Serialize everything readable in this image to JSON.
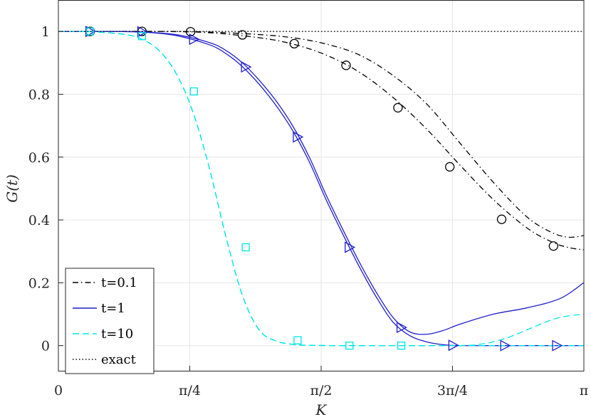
{
  "chart_data": {
    "type": "line",
    "xlabel": "K",
    "ylabel": "G(t)",
    "xlim": [
      0,
      3.14159265
    ],
    "ylim": [
      -0.08,
      1.1
    ],
    "grid": true,
    "legend_placement": "bottom-left",
    "x_ticks": [
      {
        "value": 0,
        "label": "0"
      },
      {
        "value": 0.785398,
        "label": "π/4"
      },
      {
        "value": 1.570796,
        "label": "π/2"
      },
      {
        "value": 2.356194,
        "label": "3π/4"
      },
      {
        "value": 3.141593,
        "label": "π"
      }
    ],
    "y_ticks": [
      {
        "value": 0,
        "label": "0"
      },
      {
        "value": 0.2,
        "label": "0.2"
      },
      {
        "value": 0.4,
        "label": "0.4"
      },
      {
        "value": 0.6,
        "label": "0.6"
      },
      {
        "value": 0.8,
        "label": "0.8"
      },
      {
        "value": 1.0,
        "label": "1"
      }
    ],
    "series": [
      {
        "name": "t=0.1",
        "color": "#000000",
        "dash": "dashdot",
        "marker": "circle",
        "curves": [
          {
            "x": [
              0,
              0.3,
              0.6,
              0.9,
              1.2,
              1.4,
              1.6,
              1.8,
              2.0,
              2.2,
              2.4,
              2.6,
              2.8,
              2.95,
              3.05,
              3.14
            ],
            "y": [
              1.0,
              1.0,
              1.0,
              0.998,
              0.99,
              0.98,
              0.96,
              0.925,
              0.86,
              0.77,
              0.645,
              0.52,
              0.41,
              0.36,
              0.345,
              0.35
            ]
          },
          {
            "x": [
              0,
              0.3,
              0.6,
              0.9,
              1.2,
              1.4,
              1.6,
              1.8,
              2.0,
              2.2,
              2.4,
              2.6,
              2.8,
              2.95,
              3.05,
              3.14
            ],
            "y": [
              1.0,
              1.0,
              1.0,
              0.996,
              0.98,
              0.96,
              0.925,
              0.87,
              0.79,
              0.69,
              0.575,
              0.465,
              0.375,
              0.33,
              0.312,
              0.305
            ]
          }
        ],
        "markers": [
          {
            "x": 0.19,
            "y": 1.0
          },
          {
            "x": 0.5,
            "y": 1.0
          },
          {
            "x": 0.79,
            "y": 0.999
          },
          {
            "x": 1.1,
            "y": 0.989
          },
          {
            "x": 1.41,
            "y": 0.961
          },
          {
            "x": 1.72,
            "y": 0.892
          },
          {
            "x": 2.03,
            "y": 0.757
          },
          {
            "x": 2.34,
            "y": 0.569
          },
          {
            "x": 2.65,
            "y": 0.402
          },
          {
            "x": 2.96,
            "y": 0.317
          }
        ]
      },
      {
        "name": "t=1",
        "color": "#1f1fcc",
        "dash": "solid",
        "marker": "triangle-right",
        "curves": [
          {
            "x": [
              0,
              0.3,
              0.5,
              0.7,
              0.9,
              1.0,
              1.1,
              1.2,
              1.3,
              1.4,
              1.5,
              1.6,
              1.7,
              1.8,
              1.9,
              2.0,
              2.1,
              2.2,
              2.3,
              2.4,
              2.6,
              2.8,
              3.0,
              3.14
            ],
            "y": [
              1.0,
              1.0,
              0.998,
              0.99,
              0.965,
              0.94,
              0.9,
              0.845,
              0.78,
              0.7,
              0.6,
              0.48,
              0.37,
              0.265,
              0.17,
              0.09,
              0.044,
              0.036,
              0.048,
              0.068,
              0.1,
              0.12,
              0.15,
              0.2
            ]
          },
          {
            "x": [
              0,
              0.3,
              0.5,
              0.7,
              0.9,
              1.0,
              1.1,
              1.2,
              1.3,
              1.4,
              1.5,
              1.6,
              1.7,
              1.8,
              1.9,
              2.0,
              2.1,
              2.2,
              2.3,
              2.4,
              2.6,
              2.8,
              3.0,
              3.14
            ],
            "y": [
              1.0,
              1.0,
              0.998,
              0.987,
              0.958,
              0.93,
              0.888,
              0.832,
              0.765,
              0.685,
              0.585,
              0.465,
              0.355,
              0.25,
              0.155,
              0.075,
              0.032,
              0.012,
              0.003,
              0.0,
              0.0,
              0.0,
              0.0,
              0.0
            ]
          }
        ],
        "markers": [
          {
            "x": 0.19,
            "y": 1.0
          },
          {
            "x": 0.5,
            "y": 0.999
          },
          {
            "x": 0.81,
            "y": 0.975
          },
          {
            "x": 1.12,
            "y": 0.887
          },
          {
            "x": 1.43,
            "y": 0.664
          },
          {
            "x": 1.74,
            "y": 0.313
          },
          {
            "x": 2.05,
            "y": 0.058
          },
          {
            "x": 2.36,
            "y": 0.001
          },
          {
            "x": 2.67,
            "y": 0.0
          },
          {
            "x": 2.98,
            "y": 0.0
          }
        ]
      },
      {
        "name": "t=10",
        "color": "#00e6e6",
        "dash": "dashed",
        "marker": "square",
        "curves": [
          {
            "x": [
              0,
              0.2,
              0.4,
              0.5,
              0.6,
              0.7,
              0.8,
              0.9,
              1.0,
              1.1,
              1.2,
              1.3,
              1.4,
              1.5,
              1.7,
              1.9,
              2.1,
              2.3,
              2.4,
              2.5,
              2.6,
              2.7,
              2.8,
              2.9,
              3.0,
              3.14
            ],
            "y": [
              1.0,
              0.999,
              0.99,
              0.975,
              0.94,
              0.87,
              0.75,
              0.57,
              0.35,
              0.16,
              0.05,
              0.015,
              0.004,
              0.001,
              0.0,
              0.0,
              0.0,
              0.0,
              0.0,
              0.003,
              0.012,
              0.028,
              0.05,
              0.072,
              0.09,
              0.1
            ]
          },
          {
            "x": [
              0,
              0.2,
              0.4,
              0.5,
              0.6,
              0.7,
              0.8,
              0.9,
              1.0,
              1.1,
              1.2,
              1.3,
              1.4,
              1.5,
              1.7,
              1.9,
              2.1,
              2.3,
              2.5,
              2.7,
              2.9,
              3.14
            ],
            "y": [
              1.0,
              0.999,
              0.99,
              0.975,
              0.94,
              0.87,
              0.75,
              0.57,
              0.35,
              0.16,
              0.05,
              0.015,
              0.004,
              0.001,
              0.0,
              0.0,
              0.0,
              0.0,
              0.0,
              0.0,
              0.0,
              0.0
            ]
          }
        ],
        "markers": [
          {
            "x": 0.19,
            "y": 1.0
          },
          {
            "x": 0.5,
            "y": 0.985
          },
          {
            "x": 0.81,
            "y": 0.809
          },
          {
            "x": 1.12,
            "y": 0.313
          },
          {
            "x": 1.43,
            "y": 0.017
          },
          {
            "x": 1.74,
            "y": 0.0
          },
          {
            "x": 2.05,
            "y": 0.0
          }
        ]
      },
      {
        "name": "exact",
        "color": "#000000",
        "dash": "dotted",
        "marker": "none",
        "curves": [
          {
            "x": [
              0,
              3.14159265
            ],
            "y": [
              1.0,
              1.0
            ]
          }
        ],
        "markers": []
      }
    ]
  }
}
